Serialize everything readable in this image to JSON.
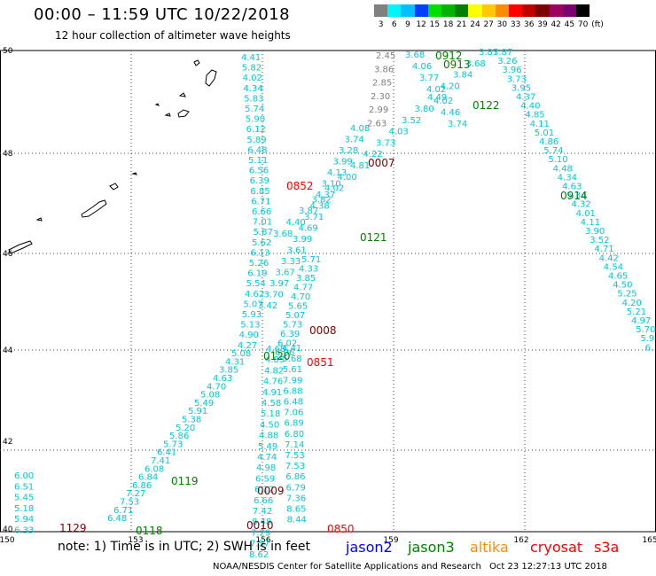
{
  "header": {
    "title": "00:00 – 11:59 UTC 10/22/2018",
    "subtitle": "12 hour collection of altimeter wave heights"
  },
  "scale": {
    "labels": [
      "3",
      "6",
      "9",
      "12",
      "15",
      "18",
      "21",
      "24",
      "27",
      "30",
      "33",
      "36",
      "39",
      "42",
      "45",
      "70"
    ],
    "unit": "(ft)",
    "colors": [
      "#808080",
      "#00f5f5",
      "#00c0ff",
      "#0040ff",
      "#00e000",
      "#00b400",
      "#008000",
      "#ffff00",
      "#ffc800",
      "#ff8c00",
      "#ff0000",
      "#c00000",
      "#800000",
      "#a00060",
      "#7a0070",
      "#000000"
    ]
  },
  "map_axes": {
    "x_ticks": [
      "150",
      "153",
      "156",
      "159",
      "162",
      "165"
    ],
    "y_ticks": [
      "50",
      "48",
      "46",
      "44",
      "42",
      "40"
    ]
  },
  "tracks": {
    "t0852": {
      "label": "0852",
      "color": "#ff0000"
    },
    "t0851": {
      "label": "0851",
      "color": "#ff0000"
    },
    "t0850": {
      "label": "0850",
      "color": "#ff0000"
    },
    "t0007": {
      "label": "0007",
      "color": "#800000"
    },
    "t0008": {
      "label": "0008",
      "color": "#800000"
    },
    "t0009": {
      "label": "0009",
      "color": "#800000"
    },
    "t0010": {
      "label": "0010",
      "color": "#800000"
    },
    "t1129": {
      "label": "1129",
      "color": "#800000"
    },
    "t0912": {
      "label": "0912",
      "color": "#008000"
    },
    "t0913": {
      "label": "0913",
      "color": "#008000"
    },
    "t0914": {
      "label": "0914",
      "color": "#008000"
    },
    "t0122": {
      "label": "0122",
      "color": "#008000"
    },
    "t0121": {
      "label": "0121",
      "color": "#008000"
    },
    "t0120": {
      "label": "0120",
      "color": "#008000"
    },
    "t0119": {
      "label": "0119",
      "color": "#008000"
    },
    "t0118": {
      "label": "0118",
      "color": "#008000"
    }
  },
  "heights": {
    "colA": [
      "4.41",
      "5.82",
      "4.02",
      "4.34",
      "5.83",
      "5.74",
      "5.90",
      "6.12",
      "5.89",
      "6.48",
      "5.11",
      "6.56",
      "6.39",
      "6.85",
      "6.71",
      "6.66",
      "7.01",
      "5.87",
      "5.62",
      "6.13",
      "5.26",
      "6.19",
      "5.54",
      "4.62",
      "5.07",
      "5.93",
      "5.13",
      "4.90",
      "4.27",
      "5.08",
      "4.31",
      "3.85",
      "4.63",
      "4.70",
      "5.08",
      "5.49",
      "5.91",
      "5.38",
      "5.20",
      "5.86",
      "5.73",
      "6.41",
      "7.41",
      "6.08",
      "6.84",
      "6.86",
      "7.27",
      "7.53",
      "6.71",
      "6.48"
    ],
    "colB": [
      "4.68",
      "4.85",
      "4.82",
      "4.76",
      "4.91",
      "4.58",
      "5.18",
      "4.50",
      "4.88",
      "5.49",
      "4.74",
      "4.98",
      "6.59",
      "6.12",
      "6.66",
      "7.42",
      "8.48",
      "7.29",
      "7.57",
      "8.62"
    ],
    "colC": [
      "4.41",
      "5.68",
      "5.61",
      "7.99",
      "6.88",
      "6.48",
      "7.06",
      "6.89",
      "6.80",
      "7.14",
      "7.53",
      "7.53",
      "6.86",
      "6.79",
      "7.36",
      "8.65",
      "8.44"
    ],
    "colGray": [
      "2.45",
      "3.86",
      "2.85",
      "2.30",
      "2.99",
      "2.63"
    ],
    "colD": [
      "4.08",
      "3.74",
      "3.28",
      "3.99",
      "4.13",
      "3.10",
      "4.37",
      "4.38",
      "3.71",
      "4.69",
      "3.99",
      "3.61",
      "3.33",
      "3.67",
      "3.97",
      "3.70",
      "3.42"
    ],
    "colE": [
      "3.87",
      "3.68",
      "3.84",
      "4.20",
      "4.49",
      "3.80",
      "3.52",
      "4.03",
      "3.73",
      "4.22",
      "4.81",
      "4.00",
      "4.02",
      "3.82",
      "3.87",
      "4.40",
      "3.68"
    ],
    "colF": [
      "3.87",
      "3.26",
      "3.96",
      "3.73",
      "3.95",
      "4.37",
      "4.40",
      "4.85",
      "4.11",
      "5.01",
      "4.86",
      "5.74",
      "5.10",
      "4.48",
      "4.34",
      "4.63",
      "5.34",
      "4.32",
      "4.01",
      "4.11",
      "3.90",
      "3.52",
      "4.71",
      "4.42",
      "4.54",
      "4.65",
      "4.50",
      "5.25",
      "4.20",
      "5.21",
      "4.97",
      "5.70",
      "5.9",
      "6."
    ],
    "colG": [
      "3.68",
      "4.06",
      "3.77",
      "4.02",
      "4.02",
      "4.46",
      "3.74"
    ],
    "colH": [
      "6.00",
      "6.51",
      "5.45",
      "5.18",
      "5.94",
      "6.33"
    ]
  },
  "note": "note: 1) Time is in UTC; 2) SWH is in feet",
  "legend": [
    {
      "name": "jason2",
      "color": "#0000ff"
    },
    {
      "name": "jason3",
      "color": "#008000"
    },
    {
      "name": "altika",
      "color": "#ff8c00"
    },
    {
      "name": "cryosat",
      "color": "#ff0000"
    },
    {
      "name": "s3a",
      "color": "#ff0000"
    }
  ],
  "credit": "NOAA/NESDIS Center for Satellite Applications and Research",
  "timestamp": "Oct 23 12:27:13 UTC 2018"
}
